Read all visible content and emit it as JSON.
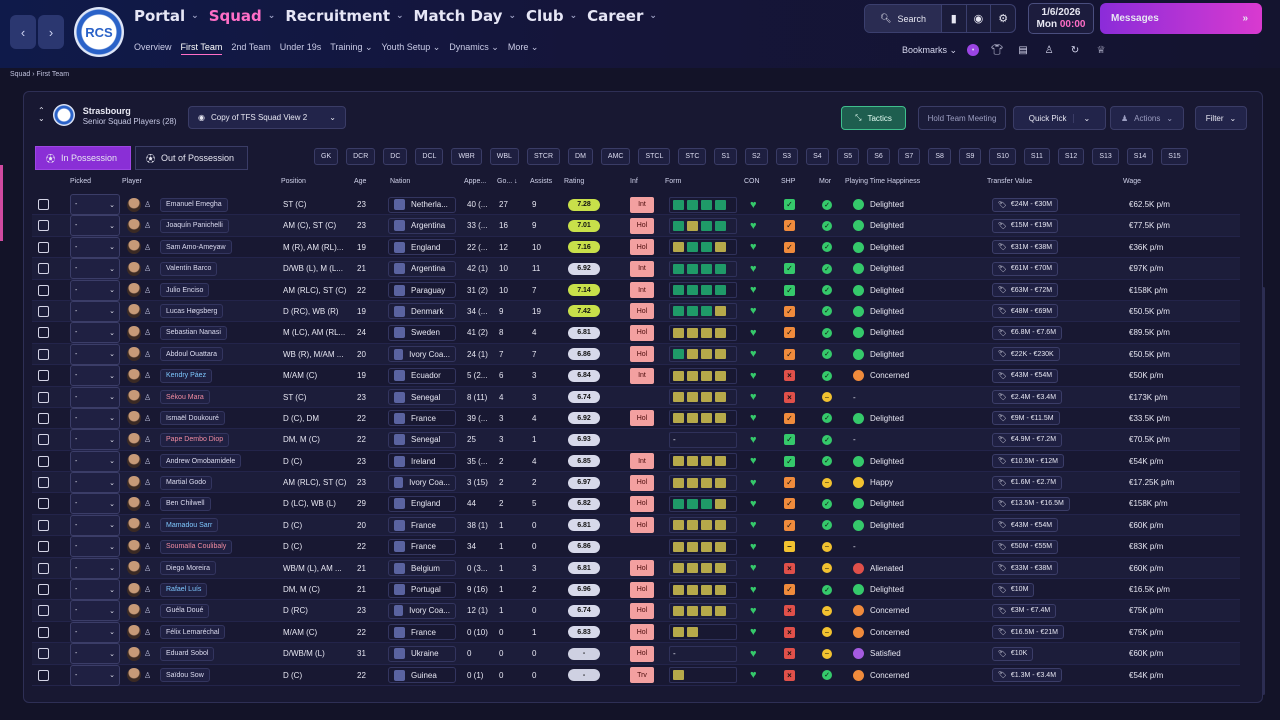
{
  "nav": {
    "back": "‹",
    "forward": "›",
    "club_initials": "RCS",
    "main": [
      {
        "label": "Portal",
        "active": false
      },
      {
        "label": "Squad",
        "active": true
      },
      {
        "label": "Recruitment",
        "active": false
      },
      {
        "label": "Match Day",
        "active": false
      },
      {
        "label": "Club",
        "active": false
      },
      {
        "label": "Career",
        "active": false
      }
    ],
    "sub": [
      {
        "label": "Overview",
        "active": false
      },
      {
        "label": "First Team",
        "active": true
      },
      {
        "label": "2nd Team",
        "active": false
      },
      {
        "label": "Under 19s",
        "active": false
      },
      {
        "label": "Training ⌄",
        "active": false
      },
      {
        "label": "Youth Setup ⌄",
        "active": false
      },
      {
        "label": "Dynamics ⌄",
        "active": false
      },
      {
        "label": "More ⌄",
        "active": false
      }
    ],
    "search_label": "Search",
    "date": "1/6/2026",
    "day": "Mon",
    "time": "00:00",
    "messages_label": "Messages",
    "bookmarks_label": "Bookmarks ⌄"
  },
  "breadcrumb": {
    "a": "Squad",
    "b": "First Team"
  },
  "club": {
    "name": "Strasbourg",
    "subtitle": "Senior Squad Players (28)"
  },
  "view_label": "Copy of TFS Squad View 2",
  "buttons": {
    "tactics": "Tactics",
    "meeting": "Hold Team Meeting",
    "quick": "Quick Pick",
    "actions": "Actions",
    "filter": "Filter"
  },
  "tabs": {
    "in": "In Possession",
    "out": "Out of Possession"
  },
  "positions": [
    "GK",
    "DCR",
    "DC",
    "DCL",
    "WBR",
    "WBL",
    "STCR",
    "DM",
    "AMC",
    "STCL",
    "STC",
    "S1",
    "S2",
    "S3",
    "S4",
    "S5",
    "S6",
    "S7",
    "S8",
    "S9",
    "S10",
    "S11",
    "S12",
    "S13",
    "S14",
    "S15"
  ],
  "headers": {
    "picked": "Picked",
    "player": "Player",
    "position": "Position",
    "age": "Age",
    "nation": "Nation",
    "apps": "Appe...",
    "goals": "Go...",
    "assists": "Assists",
    "rating": "Rating",
    "inf": "Inf",
    "form": "Form",
    "con": "CON",
    "shp": "SHP",
    "mor": "Mor",
    "pth": "Playing Time Happiness",
    "tv": "Transfer Value",
    "wage": "Wage"
  },
  "colors": {
    "accent": "#ff6ec7",
    "rating_high": "#c8e04a",
    "rating_mid": "#d7d9ea",
    "inf": "#f3a0a0",
    "happy": "#35c96b",
    "concern": "#f08b3c",
    "alien": "#e0504a",
    "satisfied": "#a45be0"
  },
  "players": [
    {
      "name": "Emanuel Emegha",
      "pos": "ST (C)",
      "age": "23",
      "nation": "Netherla...",
      "apps": "40 (...",
      "goals": "27",
      "assists": "9",
      "rating": "7.28",
      "inf": "Int",
      "form": "gggg",
      "con": "♥",
      "shp": "g",
      "mor": "g",
      "pth": "Delighted",
      "tv": "€24M - €30M",
      "wage": "€62.5K p/m",
      "name_color": "#dcdcf0"
    },
    {
      "name": "Joaquín Panichelli",
      "pos": "AM (C), ST (C)",
      "age": "23",
      "nation": "Argentina",
      "apps": "33 (...",
      "goals": "16",
      "assists": "9",
      "rating": "7.01",
      "inf": "Hol",
      "form": "gogg",
      "con": "♥",
      "shp": "o",
      "mor": "g",
      "pth": "Delighted",
      "tv": "€15M - €19M",
      "wage": "€77.5K p/m",
      "name_color": "#dcdcf0"
    },
    {
      "name": "Sam Amo-Ameyaw",
      "pos": "M (R), AM (RL)...",
      "age": "19",
      "nation": "England",
      "apps": "22 (...",
      "goals": "12",
      "assists": "10",
      "rating": "7.16",
      "inf": "Hol",
      "form": "oggo",
      "con": "♥",
      "shp": "o",
      "mor": "g",
      "pth": "Delighted",
      "tv": "€31M - €38M",
      "wage": "€36K p/m",
      "name_color": "#dcdcf0"
    },
    {
      "name": "Valentín Barco",
      "pos": "D/WB (L), M (L...",
      "age": "21",
      "nation": "Argentina",
      "apps": "42 (1)",
      "goals": "10",
      "assists": "11",
      "rating": "6.92",
      "inf": "Int",
      "form": "gggg",
      "con": "♥",
      "shp": "g",
      "mor": "g",
      "pth": "Delighted",
      "tv": "€61M - €70M",
      "wage": "€97K p/m",
      "name_color": "#dcdcf0"
    },
    {
      "name": "Julio Enciso",
      "pos": "AM (RLC), ST (C)",
      "age": "22",
      "nation": "Paraguay",
      "apps": "31 (2)",
      "goals": "10",
      "assists": "7",
      "rating": "7.14",
      "inf": "Int",
      "form": "gggg",
      "con": "♥",
      "shp": "g",
      "mor": "g",
      "pth": "Delighted",
      "tv": "€63M - €72M",
      "wage": "€158K p/m",
      "name_color": "#dcdcf0"
    },
    {
      "name": "Lucas Høgsberg",
      "pos": "D (RC), WB (R)",
      "age": "19",
      "nation": "Denmark",
      "apps": "34 (...",
      "goals": "9",
      "assists": "19",
      "rating": "7.42",
      "inf": "Hol",
      "form": "gggo",
      "con": "♥",
      "shp": "o",
      "mor": "g",
      "pth": "Delighted",
      "tv": "€48M - €69M",
      "wage": "€50.5K p/m",
      "name_color": "#dcdcf0"
    },
    {
      "name": "Sebastian Nanasi",
      "pos": "M (LC), AM (RL...",
      "age": "24",
      "nation": "Sweden",
      "apps": "41 (2)",
      "goals": "8",
      "assists": "4",
      "rating": "6.81",
      "inf": "Hol",
      "form": "oooo",
      "con": "♥",
      "shp": "o",
      "mor": "g",
      "pth": "Delighted",
      "tv": "€6.8M - €7.6M",
      "wage": "€89.5K p/m",
      "name_color": "#dcdcf0"
    },
    {
      "name": "Abdoul Ouattara",
      "pos": "WB (R), M/AM ...",
      "age": "20",
      "nation": "Ivory Coa...",
      "apps": "24 (1)",
      "goals": "7",
      "assists": "7",
      "rating": "6.86",
      "inf": "Hol",
      "form": "gooo",
      "con": "♥",
      "shp": "o",
      "mor": "g",
      "pth": "Delighted",
      "tv": "€22K - €230K",
      "wage": "€50.5K p/m",
      "name_color": "#dcdcf0"
    },
    {
      "name": "Kendry Páez",
      "pos": "M/AM (C)",
      "age": "19",
      "nation": "Ecuador",
      "apps": "5 (2...",
      "goals": "6",
      "assists": "3",
      "rating": "6.84",
      "inf": "Int",
      "form": "oooo",
      "con": "♥",
      "shp": "x",
      "mor": "g",
      "pth": "Concerned",
      "tv": "€43M - €54M",
      "wage": "€50K p/m",
      "name_color": "#7fc8ff"
    },
    {
      "name": "Sékou Mara",
      "pos": "ST (C)",
      "age": "23",
      "nation": "Senegal",
      "apps": "8 (11)",
      "goals": "4",
      "assists": "3",
      "rating": "6.74",
      "inf": "",
      "form": "oooo",
      "con": "♥",
      "shp": "x",
      "mor": "y",
      "pth": "-",
      "tv": "€2.4M - €3.4M",
      "wage": "€173K p/m",
      "name_color": "#f08ba0"
    },
    {
      "name": "Ismaël Doukouré",
      "pos": "D (C), DM",
      "age": "22",
      "nation": "France",
      "apps": "39 (...",
      "goals": "3",
      "assists": "4",
      "rating": "6.92",
      "inf": "Hol",
      "form": "oooo",
      "con": "♥",
      "shp": "o",
      "mor": "g",
      "pth": "Delighted",
      "tv": "€9M - €11.5M",
      "wage": "€33.5K p/m",
      "name_color": "#dcdcf0"
    },
    {
      "name": "Pape Dembo Diop",
      "pos": "DM, M (C)",
      "age": "22",
      "nation": "Senegal",
      "apps": "25",
      "goals": "3",
      "assists": "1",
      "rating": "6.93",
      "inf": "",
      "form": "-",
      "con": "♥",
      "shp": "g",
      "mor": "g",
      "pth": "-",
      "tv": "€4.9M - €7.2M",
      "wage": "€70.5K p/m",
      "name_color": "#f08ba0"
    },
    {
      "name": "Andrew Omobamidele",
      "pos": "D (C)",
      "age": "23",
      "nation": "Ireland",
      "apps": "35 (...",
      "goals": "2",
      "assists": "4",
      "rating": "6.85",
      "inf": "Int",
      "form": "oooo",
      "con": "♥",
      "shp": "g",
      "mor": "g",
      "pth": "Delighted",
      "tv": "€10.5M - €12M",
      "wage": "€54K p/m",
      "name_color": "#dcdcf0"
    },
    {
      "name": "Martial Godo",
      "pos": "AM (RLC), ST (C)",
      "age": "23",
      "nation": "Ivory Coa...",
      "apps": "3 (15)",
      "goals": "2",
      "assists": "2",
      "rating": "6.97",
      "inf": "Hol",
      "form": "oooo",
      "con": "♥",
      "shp": "o",
      "mor": "y",
      "pth": "Happy",
      "tv": "€1.6M - €2.7M",
      "wage": "€17.25K p/m",
      "name_color": "#dcdcf0"
    },
    {
      "name": "Ben Chilwell",
      "pos": "D (LC), WB (L)",
      "age": "29",
      "nation": "England",
      "apps": "44",
      "goals": "2",
      "assists": "5",
      "rating": "6.82",
      "inf": "Hol",
      "form": "gggo",
      "con": "♥",
      "shp": "o",
      "mor": "g",
      "pth": "Delighted",
      "tv": "€13.5M - €16.5M",
      "wage": "€158K p/m",
      "name_color": "#dcdcf0"
    },
    {
      "name": "Mamadou Sarr",
      "pos": "D (C)",
      "age": "20",
      "nation": "France",
      "apps": "38 (1)",
      "goals": "1",
      "assists": "0",
      "rating": "6.81",
      "inf": "Hol",
      "form": "oooo",
      "con": "♥",
      "shp": "o",
      "mor": "g",
      "pth": "Delighted",
      "tv": "€43M - €54M",
      "wage": "€60K p/m",
      "name_color": "#7fc8ff"
    },
    {
      "name": "Soumaïla Coulibaly",
      "pos": "D (C)",
      "age": "22",
      "nation": "France",
      "apps": "34",
      "goals": "1",
      "assists": "0",
      "rating": "6.86",
      "inf": "",
      "form": "oooo",
      "con": "♥",
      "shp": "y",
      "mor": "y",
      "pth": "-",
      "tv": "€50M - €55M",
      "wage": "€83K p/m",
      "name_color": "#f08ba0"
    },
    {
      "name": "Diego Moreira",
      "pos": "WB/M (L), AM ...",
      "age": "21",
      "nation": "Belgium",
      "apps": "0 (3...",
      "goals": "1",
      "assists": "3",
      "rating": "6.81",
      "inf": "Hol",
      "form": "oooo",
      "con": "♥",
      "shp": "x",
      "mor": "y",
      "pth": "Alienated",
      "tv": "€33M - €38M",
      "wage": "€60K p/m",
      "name_color": "#dcdcf0"
    },
    {
      "name": "Rafael Luís",
      "pos": "DM, M (C)",
      "age": "21",
      "nation": "Portugal",
      "apps": "9 (16)",
      "goals": "1",
      "assists": "2",
      "rating": "6.96",
      "inf": "Hol",
      "form": "oooo",
      "con": "♥",
      "shp": "o",
      "mor": "g",
      "pth": "Delighted",
      "tv": "€10M",
      "wage": "€16.5K p/m",
      "name_color": "#7fc8ff"
    },
    {
      "name": "Guéla Doué",
      "pos": "D (RC)",
      "age": "23",
      "nation": "Ivory Coa...",
      "apps": "12 (1)",
      "goals": "1",
      "assists": "0",
      "rating": "6.74",
      "inf": "Hol",
      "form": "oooo",
      "con": "♥",
      "shp": "x",
      "mor": "y",
      "pth": "Concerned",
      "tv": "€3M - €7.4M",
      "wage": "€75K p/m",
      "name_color": "#dcdcf0"
    },
    {
      "name": "Félix Lemaréchal",
      "pos": "M/AM (C)",
      "age": "22",
      "nation": "France",
      "apps": "0 (10)",
      "goals": "0",
      "assists": "1",
      "rating": "6.83",
      "inf": "Hol",
      "form": "oo",
      "con": "♥",
      "shp": "x",
      "mor": "y",
      "pth": "Concerned",
      "tv": "€16.5M - €21M",
      "wage": "€75K p/m",
      "name_color": "#dcdcf0"
    },
    {
      "name": "Eduard Sobol",
      "pos": "D/WB/M (L)",
      "age": "31",
      "nation": "Ukraine",
      "apps": "0",
      "goals": "0",
      "assists": "0",
      "rating": "-",
      "inf": "Hol",
      "form": "-",
      "con": "♥",
      "shp": "x",
      "mor": "y",
      "pth": "Satisfied",
      "tv": "€10K",
      "wage": "€60K p/m",
      "name_color": "#dcdcf0"
    },
    {
      "name": "Saïdou Sow",
      "pos": "D (C)",
      "age": "22",
      "nation": "Guinea",
      "apps": "0 (1)",
      "goals": "0",
      "assists": "0",
      "rating": "-",
      "inf": "Trv",
      "form": "o",
      "con": "♥",
      "shp": "x",
      "mor": "g",
      "pth": "Concerned",
      "tv": "€1.3M - €3.4M",
      "wage": "€54K p/m",
      "name_color": "#dcdcf0"
    }
  ]
}
